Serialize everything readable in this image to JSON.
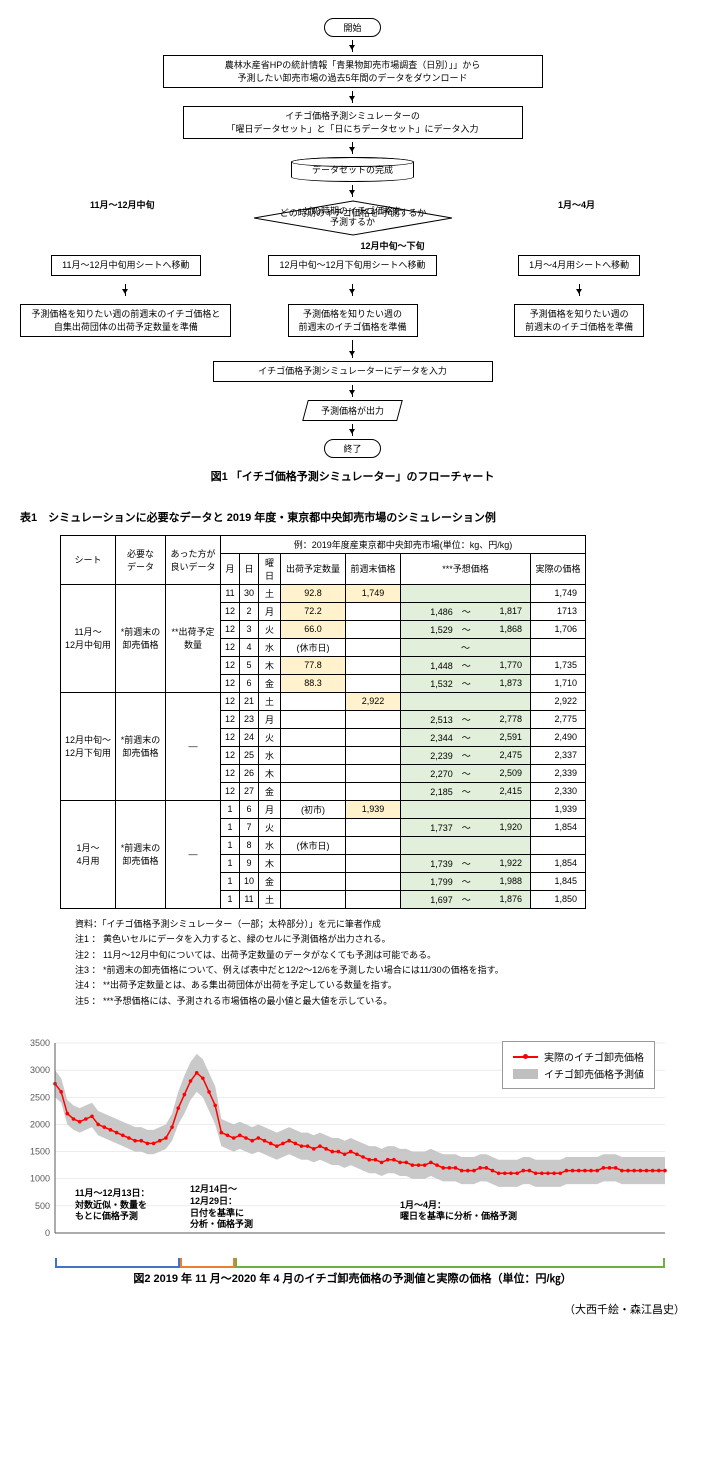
{
  "flowchart": {
    "start": "開始",
    "step1": "農林水産省HPの統計情報「青果物卸売市場調査（日別）」」から\n予測したい卸売市場の過去5年間のデータをダウンロード",
    "step2": "イチゴ価格予測シミュレーターの\n「曜日データセット」と「日にちデータセット」にデータ入力",
    "step3": "データセットの完成",
    "decision": "どの時期のイチゴ価格を\n予測するか",
    "branch_left_label": "11月～12月中旬",
    "branch_mid_label": "12月中旬～下旬",
    "branch_right_label": "1月～4月",
    "branch_left_1": "11月～12月中旬用シートへ移動",
    "branch_mid_1": "12月中旬～12月下旬用シートへ移動",
    "branch_right_1": "1月～4月用シートへ移動",
    "branch_left_2": "予測価格を知りたい週の前週末のイチゴ価格と\n自集出荷団体の出荷予定数量を準備",
    "branch_mid_2": "予測価格を知りたい週の\n前週末のイチゴ価格を準備",
    "branch_right_2": "予測価格を知りたい週の\n前週末のイチゴ価格を準備",
    "step4": "イチゴ価格予測シミュレーターにデータを入力",
    "step5": "予測価格が出力",
    "end": "終了",
    "caption": "図1 「イチゴ価格予測シミュレーター」のフローチャート"
  },
  "table": {
    "caption": "表1　シミュレーションに必要なデータと 2019 年度・東京都中央卸売市場のシミュレーション例",
    "headers": {
      "sheet": "シート",
      "req_data": "必要な\nデータ",
      "opt_data": "あった方が\n良いデータ",
      "example_header": "例：2019年度産東京都中央卸売市場(単位：kg、円/kg)",
      "month": "月",
      "day": "日",
      "dow": "曜日",
      "ship_qty": "出荷予定数量",
      "prev_price": "前週末価格",
      "pred_price": "***予想価格",
      "actual": "実際の価格"
    },
    "sheets": [
      {
        "name": "11月～\n12月中旬用",
        "req": "*前週末の\n卸売価格",
        "opt": "**出荷予定\n数量"
      },
      {
        "name": "12月中旬～\n12月下旬用",
        "req": "*前週末の\n卸売価格",
        "opt": "―"
      },
      {
        "name": "1月～\n4月用",
        "req": "*前週末の\n卸売価格",
        "opt": "―"
      }
    ],
    "rows": [
      {
        "m": "11",
        "d": "30",
        "w": "土",
        "qty": "92.8",
        "prev": "1,749",
        "lo": "",
        "hi": "",
        "act": "1,749",
        "qy": true,
        "py": true
      },
      {
        "m": "12",
        "d": "2",
        "w": "月",
        "qty": "72.2",
        "prev": "",
        "lo": "1,486",
        "hi": "1,817",
        "act": "1713",
        "qy": true
      },
      {
        "m": "12",
        "d": "3",
        "w": "火",
        "qty": "66.0",
        "prev": "",
        "lo": "1,529",
        "hi": "1,868",
        "act": "1,706",
        "qy": true
      },
      {
        "m": "12",
        "d": "4",
        "w": "水",
        "qty": "(休市日)",
        "prev": "",
        "lo": "",
        "hi": "",
        "act": "",
        "tilde": true
      },
      {
        "m": "12",
        "d": "5",
        "w": "木",
        "qty": "77.8",
        "prev": "",
        "lo": "1,448",
        "hi": "1,770",
        "act": "1,735",
        "qy": true
      },
      {
        "m": "12",
        "d": "6",
        "w": "金",
        "qty": "88.3",
        "prev": "",
        "lo": "1,532",
        "hi": "1,873",
        "act": "1,710",
        "qy": true
      },
      {
        "m": "12",
        "d": "21",
        "w": "土",
        "qty": "",
        "prev": "2,922",
        "lo": "",
        "hi": "",
        "act": "2,922",
        "py": true
      },
      {
        "m": "12",
        "d": "23",
        "w": "月",
        "qty": "",
        "prev": "",
        "lo": "2,513",
        "hi": "2,778",
        "act": "2,775"
      },
      {
        "m": "12",
        "d": "24",
        "w": "火",
        "qty": "",
        "prev": "",
        "lo": "2,344",
        "hi": "2,591",
        "act": "2,490"
      },
      {
        "m": "12",
        "d": "25",
        "w": "水",
        "qty": "",
        "prev": "",
        "lo": "2,239",
        "hi": "2,475",
        "act": "2,337"
      },
      {
        "m": "12",
        "d": "26",
        "w": "木",
        "qty": "",
        "prev": "",
        "lo": "2,270",
        "hi": "2,509",
        "act": "2,339"
      },
      {
        "m": "12",
        "d": "27",
        "w": "金",
        "qty": "",
        "prev": "",
        "lo": "2,185",
        "hi": "2,415",
        "act": "2,330"
      },
      {
        "m": "1",
        "d": "6",
        "w": "月",
        "qty": "(初市)",
        "prev": "1,939",
        "lo": "",
        "hi": "",
        "act": "1,939",
        "py": true
      },
      {
        "m": "1",
        "d": "7",
        "w": "火",
        "qty": "",
        "prev": "",
        "lo": "1,737",
        "hi": "1,920",
        "act": "1,854"
      },
      {
        "m": "1",
        "d": "8",
        "w": "水",
        "qty": "(休市日)",
        "prev": "",
        "lo": "",
        "hi": "",
        "act": ""
      },
      {
        "m": "1",
        "d": "9",
        "w": "木",
        "qty": "",
        "prev": "",
        "lo": "1,739",
        "hi": "1,922",
        "act": "1,854"
      },
      {
        "m": "1",
        "d": "10",
        "w": "金",
        "qty": "",
        "prev": "",
        "lo": "1,799",
        "hi": "1,988",
        "act": "1,845"
      },
      {
        "m": "1",
        "d": "11",
        "w": "土",
        "qty": "",
        "prev": "",
        "lo": "1,697",
        "hi": "1,876",
        "act": "1,850"
      }
    ],
    "notes": [
      "資料：「イチゴ価格予測シミュレーター（一部；太枠部分）」を元に筆者作成",
      "注1 ： 黄色いセルにデータを入力すると、緑のセルに予測価格が出力される。",
      "注2 ： 11月～12月中旬については、出荷予定数量のデータがなくても予測は可能である。",
      "注3 ： *前週末の卸売価格について、例えば表中だと12/2～12/6を予測したい場合には11/30の価格を指す。",
      "注4 ： **出荷予定数量とは、ある集出荷団体が出荷を予定している数量を指す。",
      "注5 ： ***予想価格には、予測される市場価格の最小値と最大値を示している。"
    ]
  },
  "chart": {
    "ylim": [
      0,
      3500
    ],
    "ytick_step": 500,
    "yticks": [
      "0",
      "500",
      "1000",
      "1500",
      "2000",
      "2500",
      "3000",
      "3500"
    ],
    "legend": {
      "actual": "実際のイチゴ卸売価格",
      "pred": "イチゴ卸売価格予測値"
    },
    "colors": {
      "actual": "#ff0000",
      "pred_fill": "#bfbfbf",
      "grid": "#d9d9d9",
      "axis": "#595959"
    },
    "annot1": "11月～12月13日：\n対数近似・数量を\nもとに価格予測",
    "annot2": "12月14日～\n12月29日：\n日付を基準に\n分析・価格予測",
    "annot3": "1月～4月：\n曜日を基準に分析・価格予測",
    "period_colors": [
      "#4472c4",
      "#ed7d31",
      "#70ad47"
    ],
    "actual_series": [
      2750,
      2600,
      2200,
      2100,
      2050,
      2100,
      2150,
      2000,
      1950,
      1900,
      1850,
      1800,
      1750,
      1700,
      1700,
      1650,
      1650,
      1700,
      1750,
      1950,
      2300,
      2550,
      2800,
      2950,
      2850,
      2600,
      2350,
      1850,
      1800,
      1750,
      1800,
      1750,
      1700,
      1750,
      1700,
      1650,
      1600,
      1650,
      1700,
      1650,
      1600,
      1600,
      1550,
      1600,
      1550,
      1500,
      1500,
      1450,
      1500,
      1450,
      1400,
      1350,
      1350,
      1300,
      1350,
      1350,
      1300,
      1300,
      1250,
      1250,
      1250,
      1300,
      1250,
      1200,
      1200,
      1200,
      1150,
      1150,
      1150,
      1200,
      1200,
      1150,
      1100,
      1100,
      1100,
      1100,
      1150,
      1150,
      1100,
      1100,
      1100,
      1100,
      1100,
      1150,
      1150,
      1150,
      1150,
      1150,
      1150,
      1200,
      1200,
      1200,
      1150,
      1150,
      1150,
      1150,
      1150,
      1150,
      1150,
      1150
    ],
    "band_lo": [
      2500,
      2400,
      2000,
      1900,
      1850,
      1900,
      1950,
      1800,
      1750,
      1700,
      1650,
      1600,
      1550,
      1500,
      1500,
      1450,
      1450,
      1500,
      1550,
      1700,
      2000,
      2200,
      2450,
      2600,
      2500,
      2250,
      2000,
      1600,
      1550,
      1500,
      1550,
      1500,
      1450,
      1500,
      1450,
      1400,
      1350,
      1400,
      1450,
      1400,
      1350,
      1350,
      1300,
      1350,
      1300,
      1250,
      1250,
      1200,
      1250,
      1200,
      1150,
      1100,
      1100,
      1050,
      1100,
      1100,
      1050,
      1050,
      1000,
      1000,
      1000,
      1050,
      1000,
      950,
      950,
      950,
      900,
      900,
      900,
      950,
      950,
      900,
      850,
      850,
      850,
      850,
      900,
      900,
      850,
      850,
      850,
      850,
      850,
      900,
      900,
      900,
      900,
      900,
      900,
      950,
      950,
      950,
      900,
      900,
      900,
      900,
      900,
      900,
      900,
      900
    ],
    "band_hi": [
      3000,
      2850,
      2450,
      2350,
      2300,
      2350,
      2400,
      2250,
      2200,
      2150,
      2100,
      2050,
      2000,
      1950,
      1950,
      1900,
      1900,
      1950,
      2000,
      2200,
      2600,
      2900,
      3150,
      3300,
      3200,
      2950,
      2700,
      2100,
      2050,
      2000,
      2050,
      2000,
      1950,
      2000,
      1950,
      1900,
      1850,
      1900,
      1950,
      1900,
      1850,
      1850,
      1800,
      1850,
      1800,
      1750,
      1750,
      1700,
      1750,
      1700,
      1650,
      1600,
      1600,
      1550,
      1600,
      1600,
      1550,
      1550,
      1500,
      1500,
      1500,
      1550,
      1500,
      1450,
      1450,
      1450,
      1400,
      1400,
      1400,
      1450,
      1450,
      1400,
      1350,
      1350,
      1350,
      1350,
      1400,
      1400,
      1350,
      1350,
      1350,
      1350,
      1350,
      1400,
      1400,
      1400,
      1400,
      1400,
      1400,
      1450,
      1450,
      1450,
      1400,
      1400,
      1400,
      1400,
      1400,
      1400,
      1400,
      1400
    ],
    "caption": "図2  2019 年 11 月～2020 年 4 月のイチゴ卸売価格の予測値と実際の価格（単位：円/㎏）"
  },
  "authors": "（大西千絵・森江昌史）"
}
